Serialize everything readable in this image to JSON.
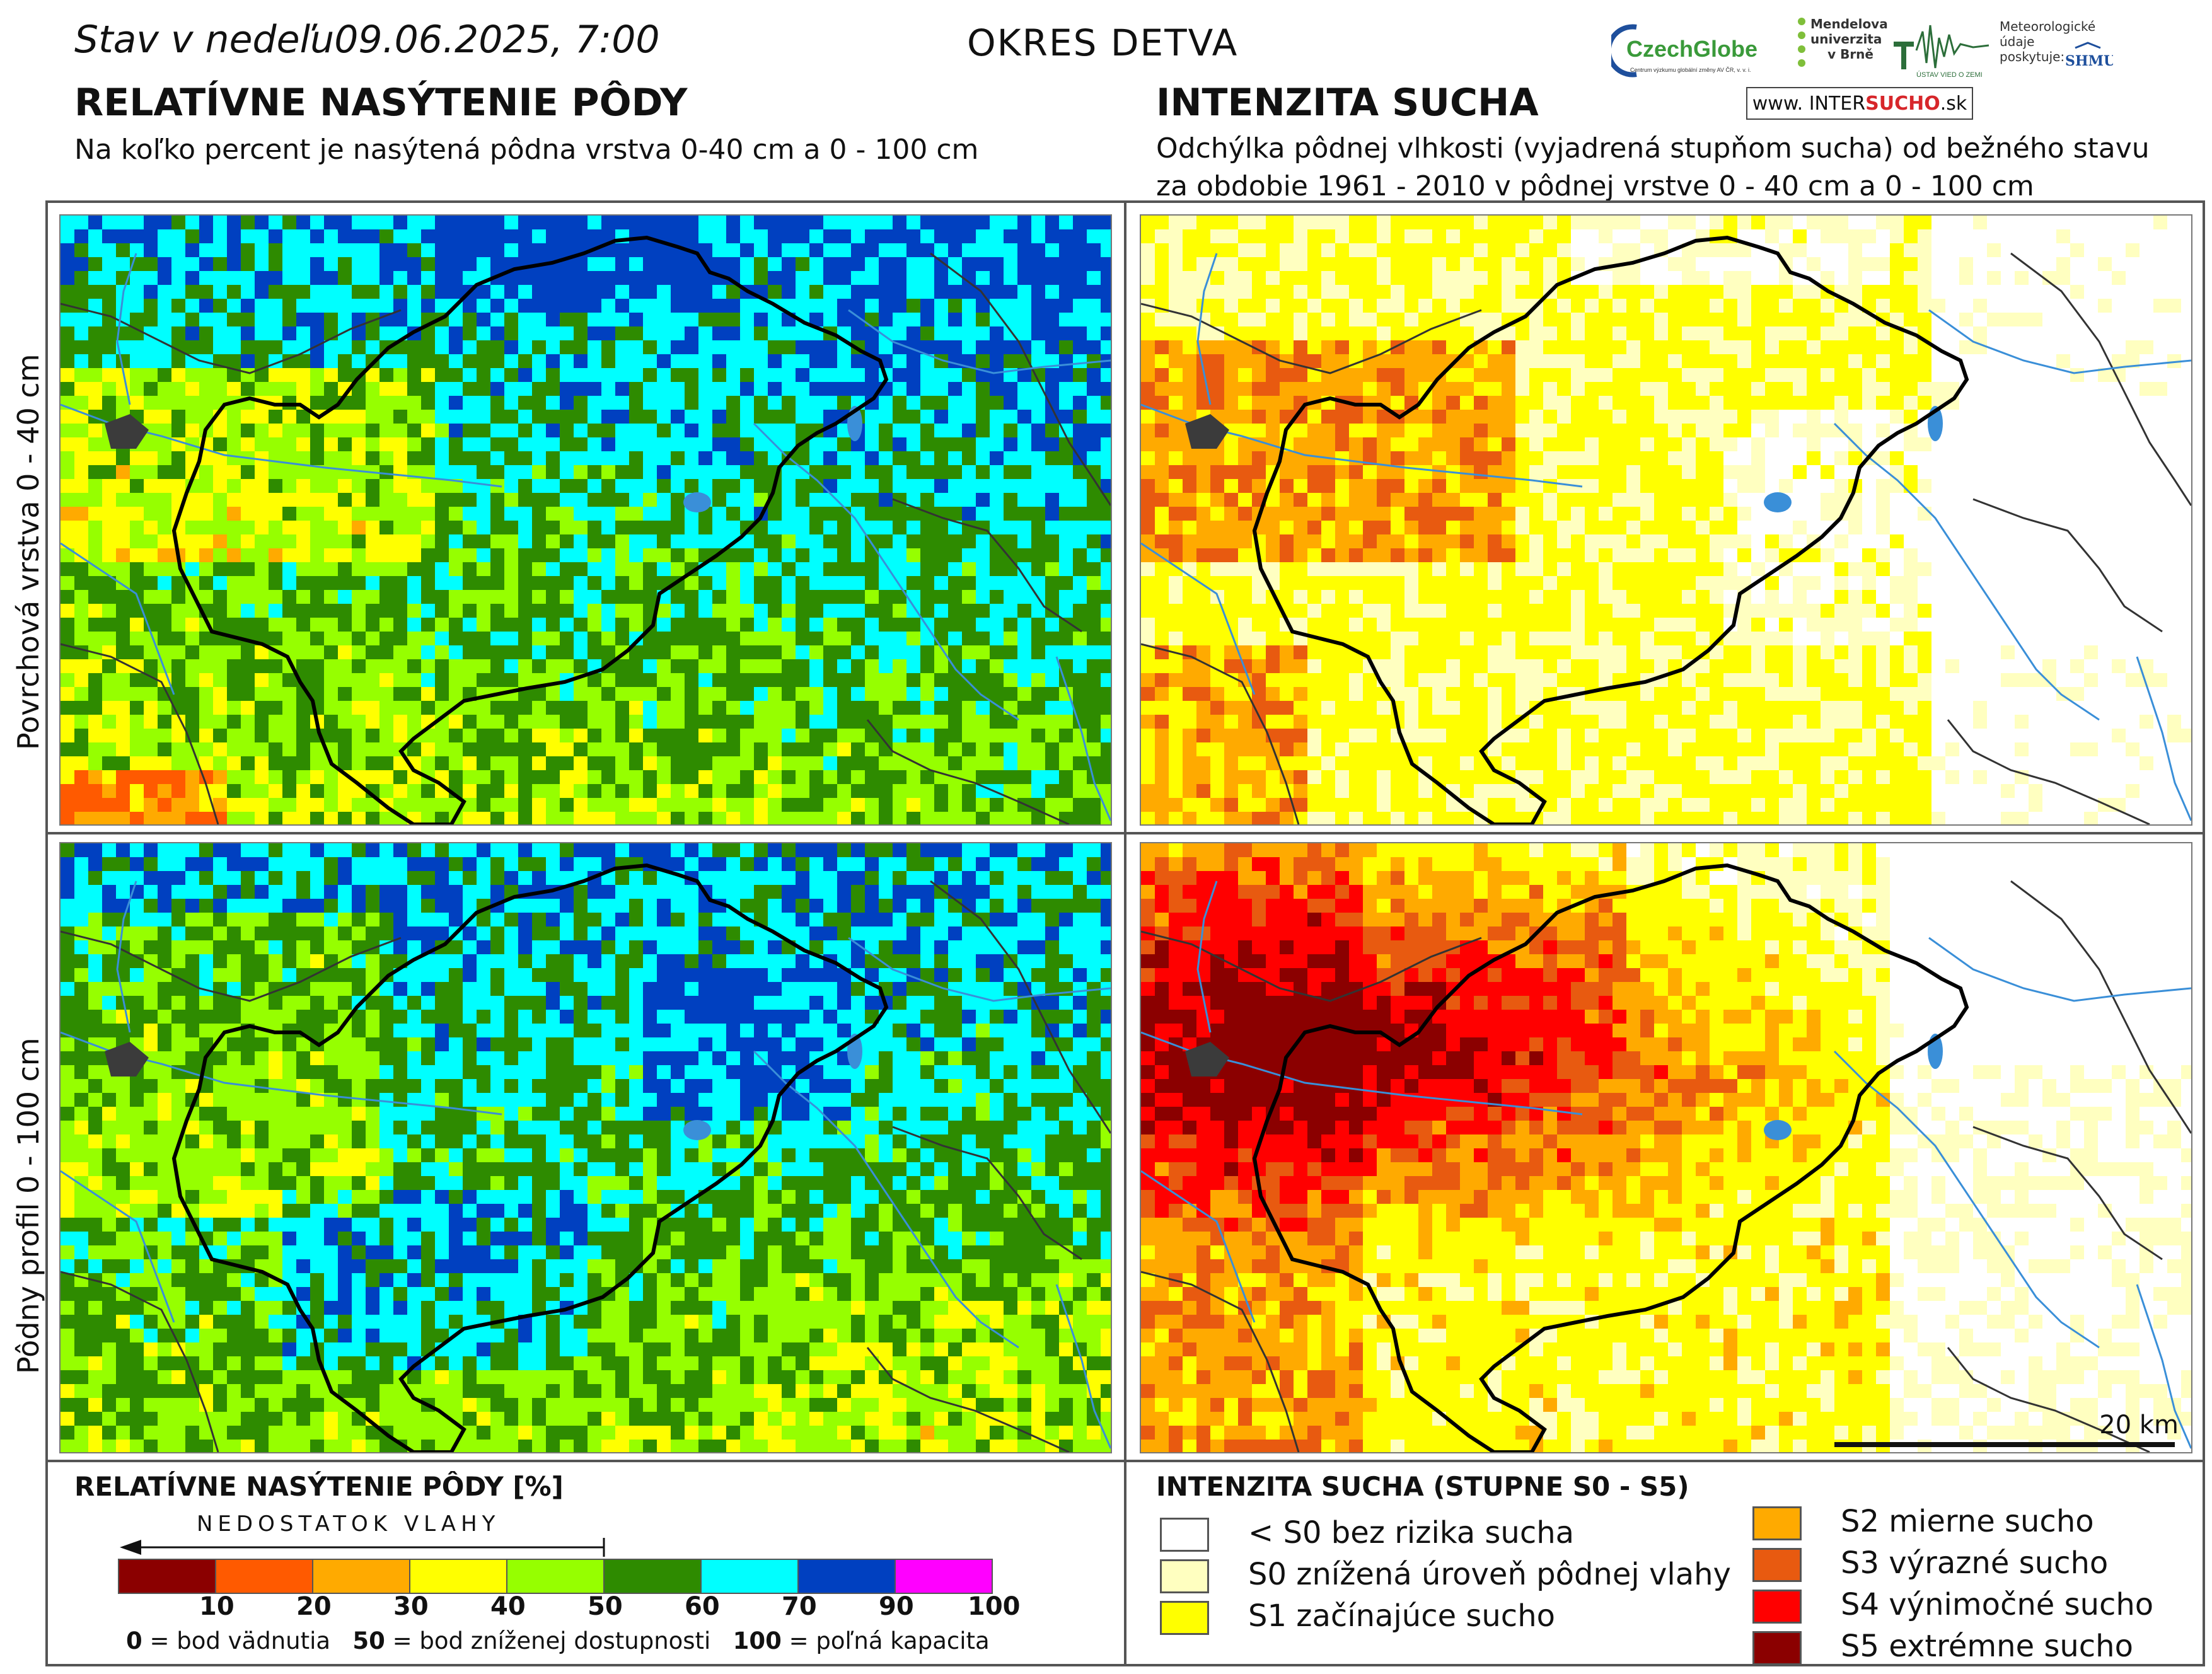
{
  "header": {
    "date_prefix": "Stav v nedeľu",
    "date_value": "09.06.2025, 7:00",
    "district": "OKRES  DETVA"
  },
  "left_panel": {
    "title": "RELATÍVNE NASÝTENIE PÔDY",
    "subtitle": "Na koľko percent je nasýtená pôdna vrstva 0-40 cm a 0 - 100 cm"
  },
  "right_panel": {
    "title": "INTENZITA SUCHA",
    "subtitle_line1": "Odchýlka pôdnej vlhkosti (vyjadrená stupňom sucha) od bežného stavu",
    "subtitle_line2": "za obdobie 1961 - 2010 v pôdnej vrstve 0 - 40 cm a 0 - 100 cm"
  },
  "row_labels": {
    "top": "Povrchová vrstva 0 - 40 cm",
    "bottom": "Pôdny profil 0 - 100 cm"
  },
  "logos": {
    "czechglobe": "CzechGlobe",
    "czechglobe_sub": "Centrum výzkumu globální změny AV ČR, v. v. i.",
    "mendel_line1": "Mendelova",
    "mendel_line2": "univerzita",
    "mendel_line3": "v Brně",
    "uvz": "ÚSTAV VIED O ZEMI",
    "met_line1": "Meteorologické",
    "met_line2": "údaje",
    "met_line3": "poskytuje:",
    "shmu": "SHMU",
    "intersucho_www": "www.",
    "intersucho_a": "INTER",
    "intersucho_b": "SUCHO",
    "intersucho_c": ".sk"
  },
  "scale_bar": "20 km",
  "saturation_legend": {
    "title": "RELATÍVNE NASÝTENIE PÔDY [%]",
    "arrow_label": "NEDOSTATOK VLAHY",
    "colors": [
      "#8b0000",
      "#ff5a00",
      "#ffaa00",
      "#ffff00",
      "#96ff00",
      "#2e8b00",
      "#00ffff",
      "#0040c0",
      "#ff00ff"
    ],
    "ticks": [
      "10",
      "20",
      "30",
      "40",
      "50",
      "60",
      "70",
      "90",
      "100"
    ],
    "note_0_value": "0",
    "note_0_text": " = bod vädnutia",
    "note_50_value": "50",
    "note_50_text": " = bod zníženej dostupnosti",
    "note_100_value": "100",
    "note_100_text": " = poľná kapacita"
  },
  "drought_legend": {
    "title": "INTENZITA SUCHA (STUPNE S0 - S5)",
    "items": [
      {
        "label": "< S0 bez rizika sucha",
        "color": "#ffffff"
      },
      {
        "label": "S0 znížená úroveň pôdnej vlahy",
        "color": "#ffffc0"
      },
      {
        "label": "S1 začínajúce sucho",
        "color": "#ffff00"
      },
      {
        "label": "S2 mierne sucho",
        "color": "#ffaa00"
      },
      {
        "label": "S3 výrazné sucho",
        "color": "#e85a10"
      },
      {
        "label": "S4 výnimočné sucho",
        "color": "#ff0000"
      },
      {
        "label": "S5 extrémne sucho",
        "color": "#8b0000"
      }
    ]
  }
}
